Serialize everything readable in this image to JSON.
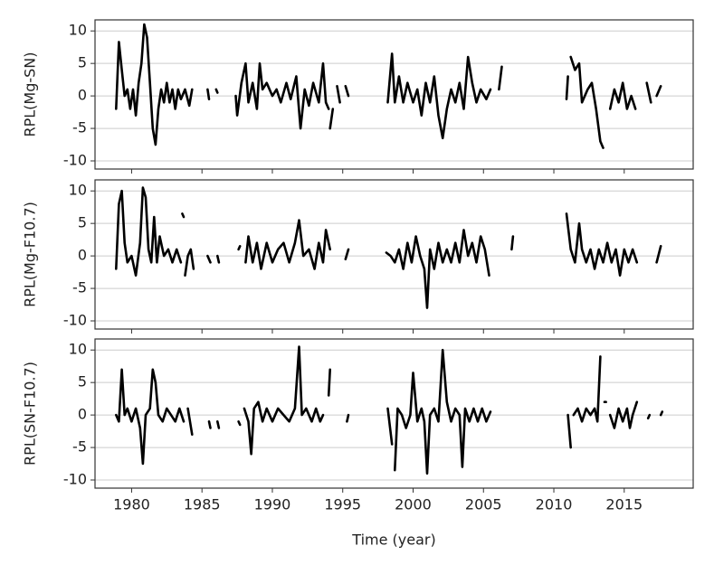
{
  "chart_data": [
    {
      "type": "line",
      "ylabel": "RPL(Mg-SN)",
      "grid": true,
      "xlim": [
        1977.4,
        2019.9
      ],
      "xticks": [
        1980,
        1985,
        1990,
        1995,
        2000,
        2005,
        2010,
        2015
      ],
      "ylim": [
        -11.25,
        11.7
      ],
      "yticks": [
        -10,
        -5,
        0,
        5,
        10
      ],
      "x": [
        1978.9,
        1979.1,
        1979.3,
        1979.5,
        1979.7,
        1979.9,
        1980.1,
        1980.3,
        1980.5,
        1980.7,
        1980.9,
        1981.1,
        1981.3,
        1981.5,
        1981.7,
        1981.9,
        1982.1,
        1982.3,
        1982.5,
        1982.7,
        1982.9,
        1983.1,
        1983.3,
        1983.5,
        1983.8,
        1984.1,
        1984.3,
        1984.8,
        1985.4,
        1985.5,
        1985.8,
        1986,
        1986.1,
        1986.8,
        1987.4,
        1987.5,
        1987.8,
        1988.1,
        1988.3,
        1988.6,
        1988.9,
        1989.1,
        1989.3,
        1989.6,
        1990,
        1990.3,
        1990.6,
        1991,
        1991.3,
        1991.7,
        1992,
        1992.3,
        1992.6,
        1992.9,
        1993.3,
        1993.6,
        1993.8,
        1994,
        1994.05,
        1994.1,
        1994.3,
        1994.45,
        1994.6,
        1994.8,
        1995,
        1995.2,
        1995.4,
        1996.8,
        1998.2,
        1998.5,
        1998.7,
        1999,
        1999.3,
        1999.6,
        2000,
        2000.3,
        2000.6,
        2000.9,
        2001.2,
        2001.5,
        2001.8,
        2002.1,
        2002.4,
        2002.7,
        2003,
        2003.3,
        2003.6,
        2003.9,
        2004.2,
        2004.5,
        2004.8,
        2005.2,
        2005.5,
        2005.8,
        2006.1,
        2006.3,
        2008.6,
        2010.9,
        2011,
        2011.1,
        2011.2,
        2011.5,
        2011.8,
        2012,
        2012.4,
        2012.7,
        2013,
        2013.3,
        2013.5,
        2013.75,
        2014,
        2014.3,
        2014.6,
        2014.9,
        2015.2,
        2015.5,
        2015.8,
        2016.2,
        2016.6,
        2016.9,
        2017.1,
        2017.3,
        2017.6
      ],
      "series": [
        {
          "color": "#000000",
          "values": [
            -2,
            8.3,
            4,
            0,
            1,
            -2,
            1,
            -3,
            2,
            5,
            11,
            9,
            2,
            -5,
            -7.5,
            -2,
            1,
            -1,
            2,
            -1,
            1,
            -2,
            1,
            -0.5,
            1,
            -1.5,
            1,
            null,
            1,
            -0.5,
            null,
            1,
            0.5,
            null,
            0,
            -3,
            2,
            5,
            -1,
            2,
            -2,
            5,
            1,
            2,
            0,
            1,
            -1,
            2,
            -0.5,
            3,
            -5,
            1,
            -1.5,
            2,
            -1,
            5,
            -1,
            -2,
            null,
            -5,
            -2,
            null,
            1.5,
            -1,
            null,
            1.5,
            0,
            null,
            -1,
            6.5,
            -1,
            3,
            -1,
            2,
            -1,
            1,
            -3,
            2,
            -1,
            3,
            -3,
            -6.5,
            -2,
            1,
            -1,
            2,
            -2,
            6,
            2,
            -1,
            1,
            -0.5,
            1,
            null,
            1,
            4.5,
            null,
            -0.5,
            3,
            null,
            6,
            4,
            5,
            -1,
            1,
            2,
            -2,
            -7,
            -8,
            null,
            -2,
            1,
            -1,
            2,
            -2,
            0,
            -2,
            null,
            2,
            -1,
            null,
            0,
            1.5
          ]
        }
      ]
    },
    {
      "type": "line",
      "ylabel": "RPL(Mg-F10.7)",
      "grid": true,
      "xlim": [
        1977.4,
        2019.9
      ],
      "xticks": [
        1980,
        1985,
        1990,
        1995,
        2000,
        2005,
        2010,
        2015
      ],
      "ylim": [
        -11.25,
        11.7
      ],
      "yticks": [
        -10,
        -5,
        0,
        5,
        10
      ],
      "x": [
        1978.9,
        1979.1,
        1979.3,
        1979.5,
        1979.7,
        1980,
        1980.3,
        1980.6,
        1980.8,
        1981,
        1981.2,
        1981.4,
        1981.6,
        1981.8,
        1982,
        1982.3,
        1982.6,
        1982.9,
        1983.2,
        1983.5,
        1983.55,
        1983.6,
        1983.7,
        1983.75,
        1983.8,
        1984,
        1984.2,
        1984.4,
        1984.9,
        1985.4,
        1985.6,
        1985.85,
        1986.1,
        1986.2,
        1986.9,
        1987.6,
        1987.7,
        1987.9,
        1988.1,
        1988.3,
        1988.6,
        1988.9,
        1989.2,
        1989.6,
        1990,
        1990.4,
        1990.8,
        1991.2,
        1991.6,
        1991.9,
        1992.2,
        1992.6,
        1993,
        1993.3,
        1993.6,
        1993.8,
        1994.1,
        1994.3,
        1994.5,
        1994.8,
        1995.2,
        1995.4,
        1996.7,
        1998.1,
        1998.4,
        1998.7,
        1999,
        1999.3,
        1999.6,
        1999.9,
        2000.2,
        2000.5,
        2000.8,
        2001,
        2001.2,
        2001.5,
        2001.8,
        2002.1,
        2002.4,
        2002.7,
        2003,
        2003.3,
        2003.6,
        2003.9,
        2004.2,
        2004.5,
        2004.8,
        2005.1,
        2005.4,
        2006.2,
        2007,
        2007.1,
        2009,
        2010.9,
        2011.2,
        2011.5,
        2011.8,
        2012,
        2012.3,
        2012.6,
        2012.9,
        2013.2,
        2013.5,
        2013.8,
        2014.1,
        2014.4,
        2014.7,
        2015,
        2015.3,
        2015.6,
        2015.9,
        2016.6,
        2017.3,
        2017.6
      ],
      "series": [
        {
          "color": "#000000",
          "values": [
            -2,
            8,
            10,
            2,
            -1,
            0,
            -3,
            2,
            10.5,
            9,
            1,
            -1,
            6,
            -1,
            3,
            0,
            1,
            -1,
            1,
            -1,
            null,
            6.5,
            6,
            null,
            -3,
            0,
            1,
            -2,
            null,
            0,
            -1,
            null,
            0,
            -1,
            null,
            1,
            1.5,
            null,
            -1,
            3,
            -1,
            2,
            -2,
            2,
            -1,
            1,
            2,
            -1,
            2,
            5.5,
            0,
            1,
            -2,
            2,
            -1,
            4,
            1,
            null,
            1.5,
            null,
            -0.5,
            1,
            null,
            0.5,
            0,
            -1,
            1,
            -2,
            2,
            -1,
            3,
            0,
            -2,
            -8,
            1,
            -2,
            2,
            -1,
            1,
            -1,
            2,
            -1,
            4,
            0,
            2,
            -1,
            3,
            1,
            -3,
            null,
            1,
            3,
            null,
            6.5,
            1,
            -1,
            5,
            1,
            -1,
            1,
            -2,
            1,
            -1,
            2,
            -1,
            1,
            -3,
            1,
            -1,
            1,
            -1,
            null,
            -1,
            1.5
          ]
        }
      ]
    },
    {
      "type": "line",
      "ylabel": "RPL(SN-F10.7)",
      "xlabel": "Time (year)",
      "grid": true,
      "xlim": [
        1977.4,
        2019.9
      ],
      "xticks": [
        1980,
        1985,
        1990,
        1995,
        2000,
        2005,
        2010,
        2015
      ],
      "ylim": [
        -11.25,
        11.7
      ],
      "yticks": [
        -10,
        -5,
        0,
        5,
        10
      ],
      "x": [
        1978.9,
        1979.1,
        1979.3,
        1979.5,
        1979.7,
        1980,
        1980.3,
        1980.6,
        1980.8,
        1981,
        1981.3,
        1981.5,
        1981.7,
        1981.9,
        1982.2,
        1982.5,
        1982.8,
        1983.1,
        1983.4,
        1983.7,
        1983.85,
        1984,
        1984.3,
        1984.9,
        1985.5,
        1985.6,
        1985.85,
        1986.1,
        1986.2,
        1986.9,
        1987.6,
        1987.7,
        1987.85,
        1988,
        1988.3,
        1988.5,
        1988.7,
        1989,
        1989.3,
        1989.6,
        1990,
        1990.4,
        1990.8,
        1991.2,
        1991.6,
        1991.9,
        1992.1,
        1992.4,
        1992.8,
        1993.1,
        1993.4,
        1993.6,
        1993.8,
        1994,
        1994.1,
        1994.35,
        1994.6,
        1994.9,
        1995.3,
        1995.4,
        1996.8,
        1998.2,
        1998.5,
        1998.6,
        1998.7,
        1998.9,
        1999.2,
        1999.5,
        1999.8,
        2000,
        2000.3,
        2000.6,
        2000.8,
        2001,
        2001.2,
        2001.5,
        2001.8,
        2002.1,
        2002.4,
        2002.7,
        2003,
        2003.3,
        2003.5,
        2003.7,
        2004,
        2004.3,
        2004.6,
        2004.9,
        2005.2,
        2005.5,
        2008.2,
        2011,
        2011.2,
        2011.3,
        2011.4,
        2011.7,
        2012,
        2012.3,
        2012.6,
        2012.9,
        2013.1,
        2013.3,
        2013.45,
        2013.6,
        2013.7,
        2013.85,
        2014,
        2014.3,
        2014.6,
        2014.9,
        2015.2,
        2015.4,
        2015.6,
        2015.9,
        2016.3,
        2016.7,
        2016.8,
        2017.2,
        2017.6,
        2017.7
      ],
      "series": [
        {
          "color": "#000000",
          "values": [
            0,
            -1,
            7,
            0,
            1,
            -1,
            1,
            -2,
            -7.5,
            0,
            1,
            7,
            5,
            0,
            -1,
            1,
            0,
            -1,
            1,
            -1,
            null,
            1,
            -3,
            null,
            -1,
            -2,
            null,
            -1,
            -2,
            null,
            -1,
            -1.5,
            null,
            1,
            -1,
            -6,
            1,
            2,
            -1,
            1,
            -1,
            1,
            0,
            -1,
            1,
            10.5,
            0,
            1,
            -1,
            1,
            -1,
            0,
            null,
            3,
            7,
            null,
            1.5,
            null,
            -1,
            0,
            null,
            1,
            -4.5,
            null,
            -8.5,
            1,
            0,
            -2,
            0,
            6.5,
            -1,
            1,
            -1,
            -9,
            0,
            1,
            -1,
            10,
            2,
            -1,
            1,
            0,
            -8,
            1,
            -1,
            1,
            -1,
            1,
            -1,
            0.5,
            null,
            0,
            -5,
            null,
            0,
            1,
            -1,
            1,
            0,
            1,
            -1,
            9,
            null,
            2,
            2,
            null,
            0,
            -2,
            1,
            -1,
            1,
            -2,
            0,
            2,
            null,
            -0.5,
            0,
            null,
            0,
            0.5
          ]
        }
      ]
    }
  ]
}
